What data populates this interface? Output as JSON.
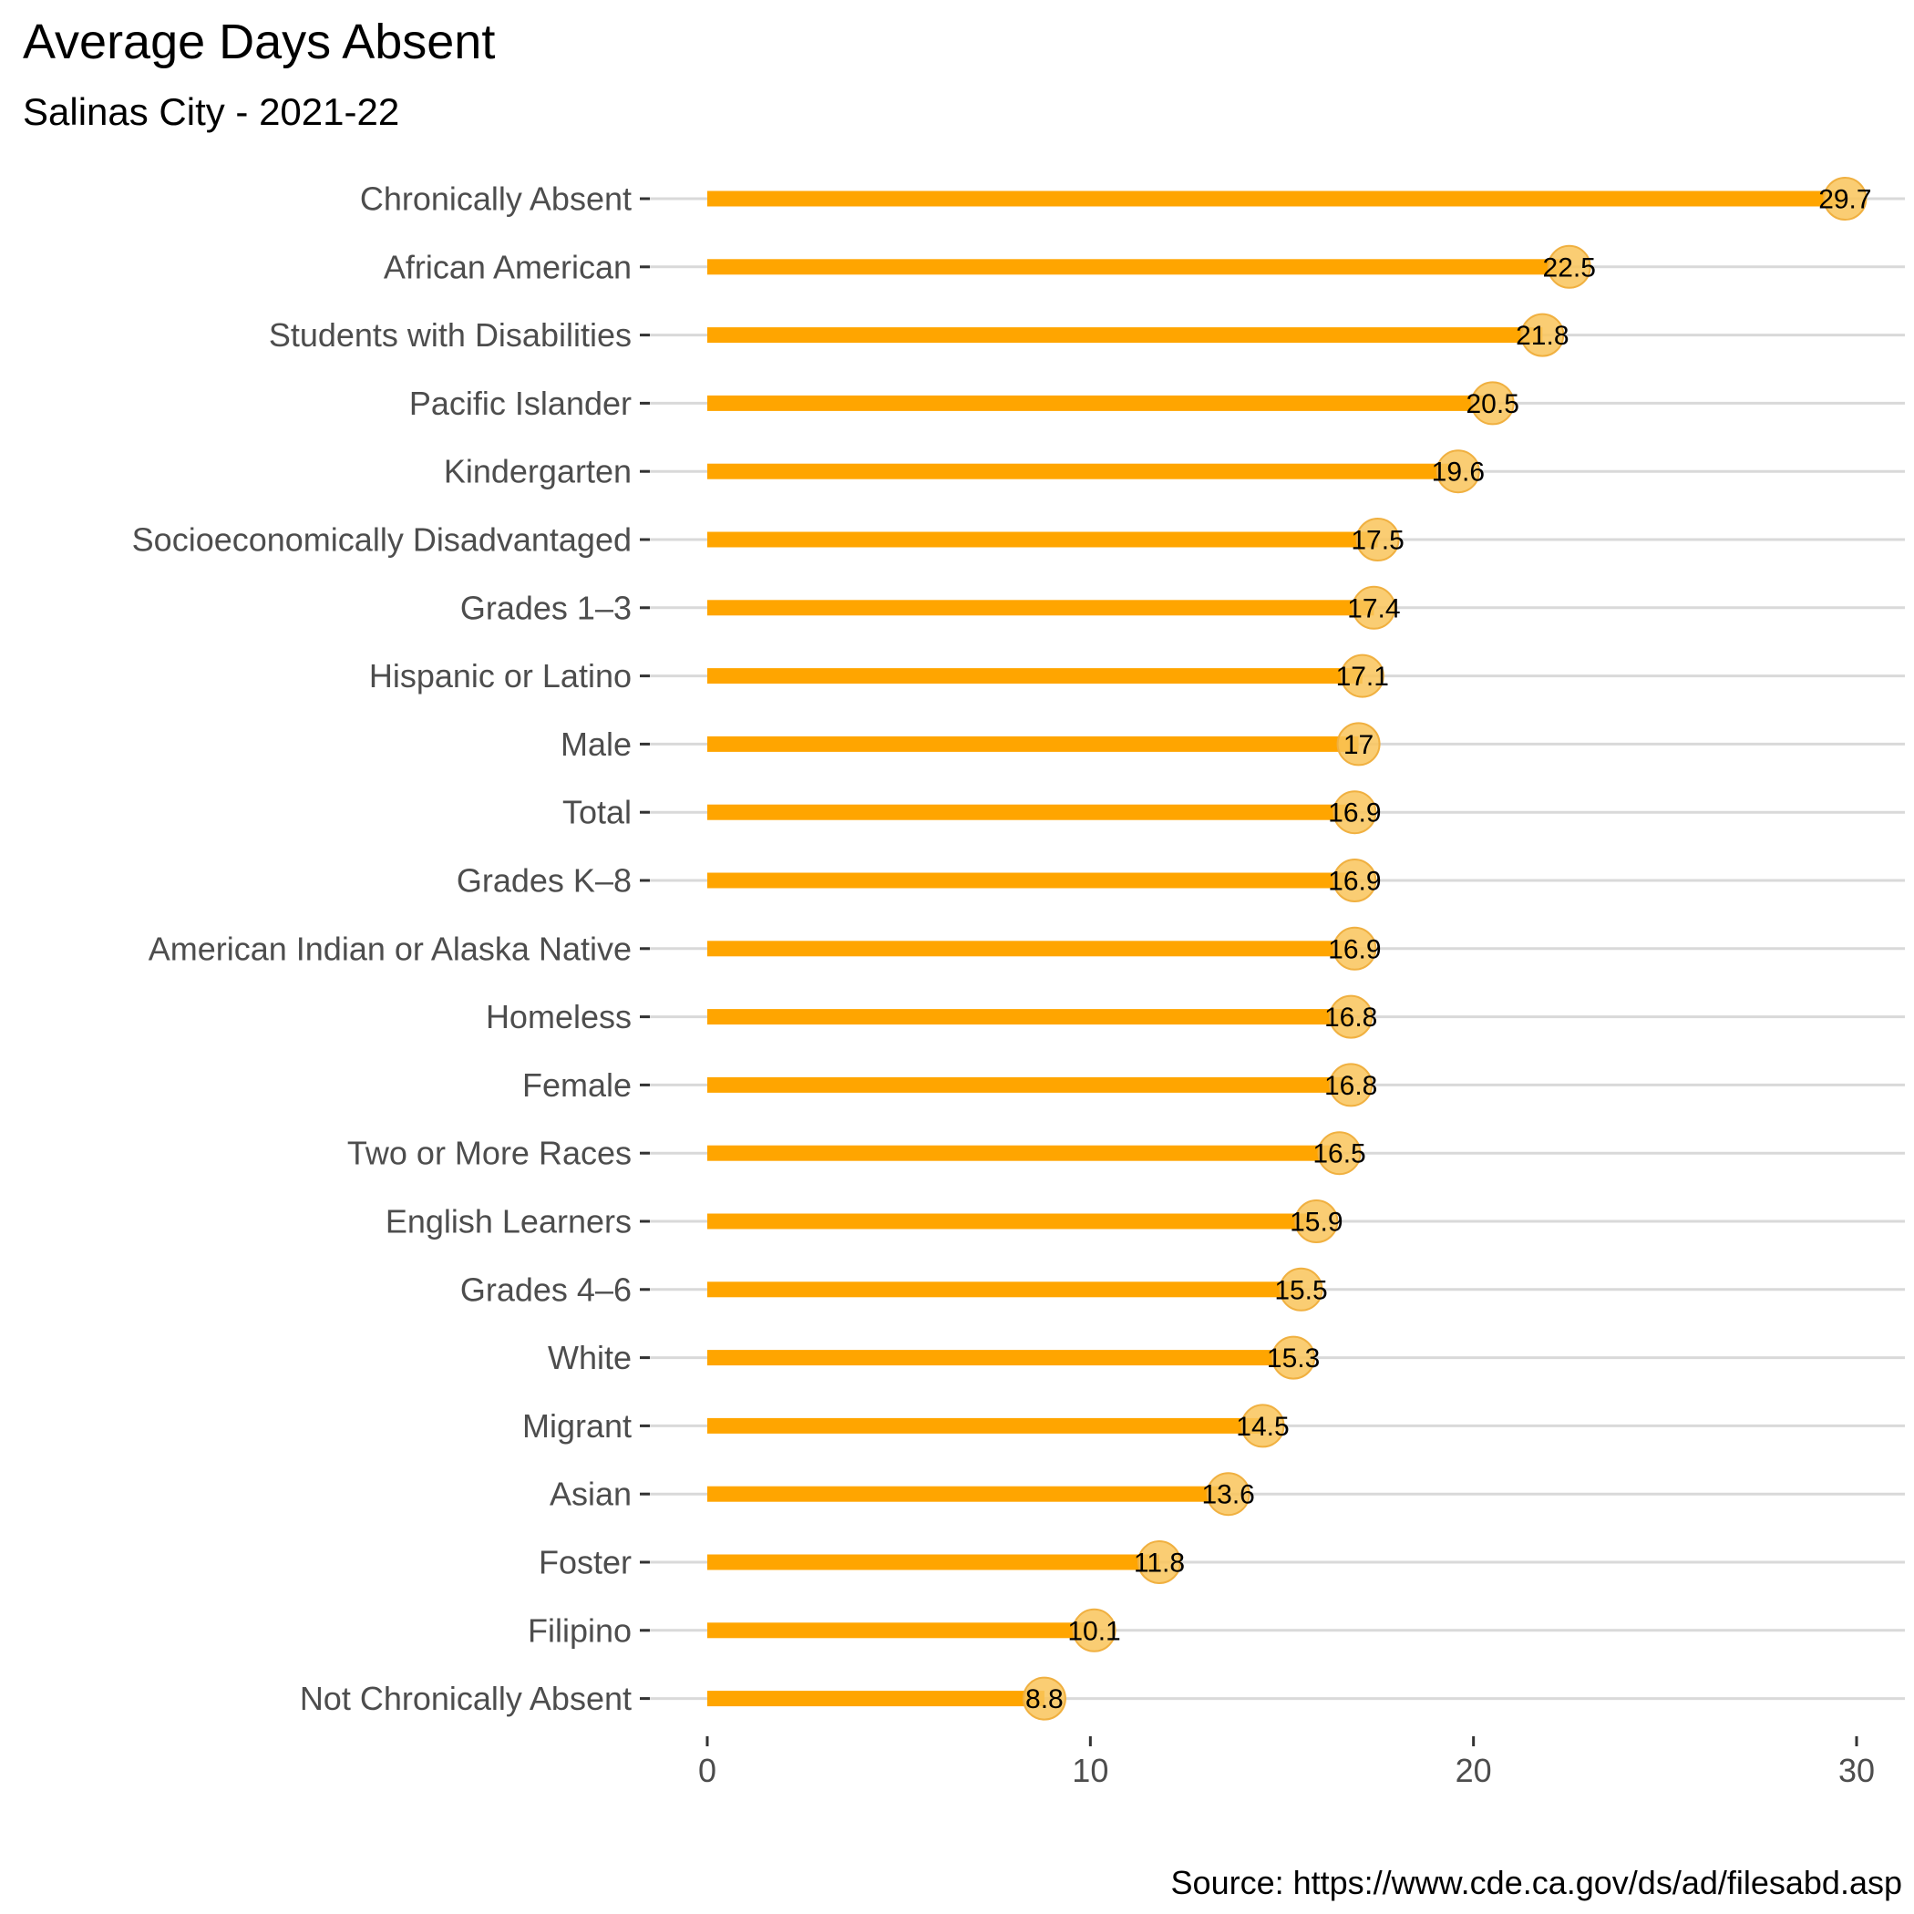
{
  "chart_data": {
    "type": "bar",
    "orientation": "horizontal",
    "style": "lollipop",
    "title": "Average Days Absent",
    "subtitle": "Salinas City - 2021-22",
    "caption": "Source: https://www.cde.ca.gov/ds/ad/filesabd.asp",
    "xlabel": "",
    "ylabel": "",
    "xlim": [
      0,
      30
    ],
    "x_ticks": [
      0,
      10,
      20,
      30
    ],
    "grid": "horizontal major lines only",
    "legend": "none",
    "colors": {
      "bar": "#FFA500",
      "point": "#F9C45A",
      "point_edge": "#F0B040",
      "grid": "#D9D9D9",
      "tick_text": "#4D4D4D"
    },
    "categories": [
      "Chronically Absent",
      "African American",
      "Students with Disabilities",
      "Pacific Islander",
      "Kindergarten",
      "Socioeconomically Disadvantaged",
      "Grades 1–3",
      "Hispanic or Latino",
      "Male",
      "Total",
      "Grades K–8",
      "American Indian or Alaska Native",
      "Homeless",
      "Female",
      "Two or More Races",
      "English Learners",
      "Grades 4–6",
      "White",
      "Migrant",
      "Asian",
      "Foster",
      "Filipino",
      "Not Chronically Absent"
    ],
    "values": [
      29.7,
      22.5,
      21.8,
      20.5,
      19.6,
      17.5,
      17.4,
      17.1,
      17,
      16.9,
      16.9,
      16.9,
      16.8,
      16.8,
      16.5,
      15.9,
      15.5,
      15.3,
      14.5,
      13.6,
      11.8,
      10.1,
      8.8
    ],
    "value_labels": [
      "29.7",
      "22.5",
      "21.8",
      "20.5",
      "19.6",
      "17.5",
      "17.4",
      "17.1",
      "17",
      "16.9",
      "16.9",
      "16.9",
      "16.8",
      "16.8",
      "16.5",
      "15.9",
      "15.5",
      "15.3",
      "14.5",
      "13.6",
      "11.8",
      "10.1",
      "8.8"
    ]
  }
}
